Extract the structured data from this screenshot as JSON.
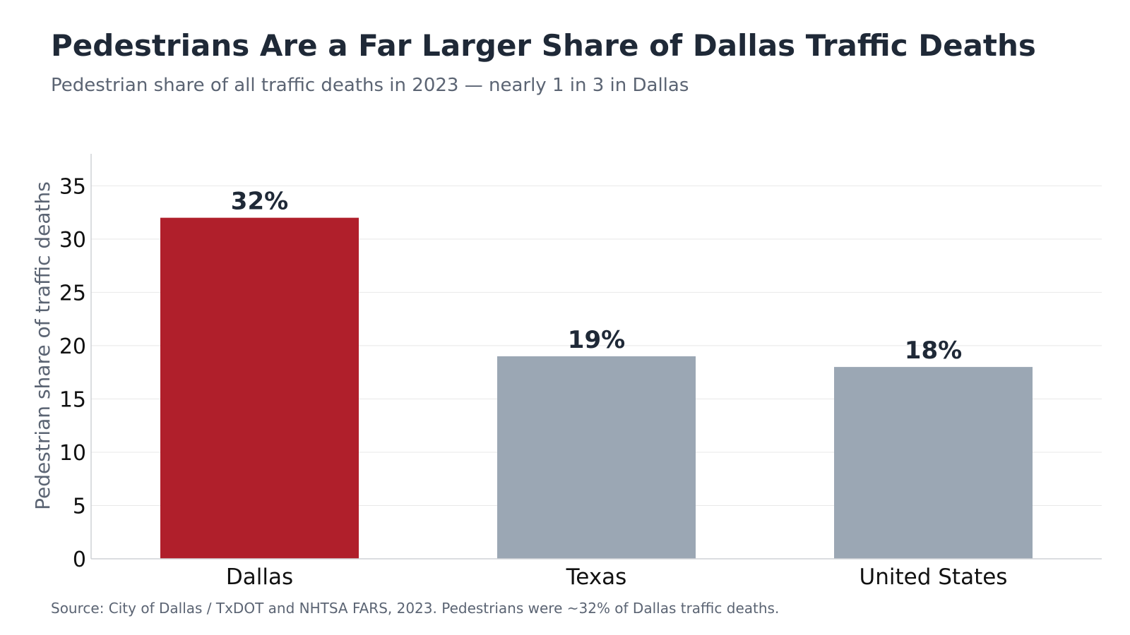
{
  "title": "Pedestrians Are a Far Larger Share of Dallas Traffic Deaths",
  "subtitle": "Pedestrian share of all traffic deaths in 2023 — nearly 1 in 3 in Dallas",
  "source": "Source: City of Dallas / TxDOT and NHTSA FARS, 2023. Pedestrians were ~32% of Dallas traffic deaths.",
  "colors": {
    "highlight": "#b01f2b",
    "muted": "#9ba7b4",
    "grid": "#e8e8e8",
    "axis": "#cfd2d6",
    "label": "#1f2937",
    "ylabel": "#5b6473"
  },
  "chart_data": {
    "type": "bar",
    "categories": [
      "Dallas",
      "Texas",
      "United States"
    ],
    "values": [
      32,
      19,
      18
    ],
    "data_labels": [
      "32%",
      "19%",
      "18%"
    ],
    "highlight_category": "Dallas",
    "xlabel": "",
    "ylabel": "Pedestrian share of traffic deaths",
    "ylim": [
      0,
      38
    ],
    "yticks": [
      0,
      5,
      10,
      15,
      20,
      25,
      30,
      35
    ],
    "grid": true,
    "legend": "none"
  }
}
